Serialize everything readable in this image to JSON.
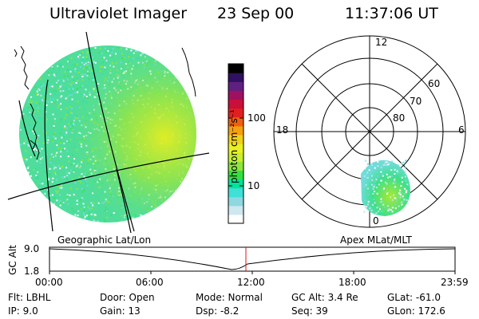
{
  "header": {
    "instrument": "Ultraviolet Imager",
    "date": "23 Sep 00",
    "time": "11:37:06 UT"
  },
  "colorbar": {
    "unit_label": "photon cm⁻²s⁻¹",
    "ticks": [
      "100",
      "10"
    ],
    "scale": "log",
    "colors": [
      "#ffffff",
      "#cfe7ee",
      "#8ed8e0",
      "#3ee0d8",
      "#00e39a",
      "#33e040",
      "#8ee63a",
      "#c8ee2e",
      "#e8f020",
      "#f0d018",
      "#f4a010",
      "#ee6010",
      "#e02020",
      "#c8103a",
      "#a01060",
      "#602080",
      "#301060",
      "#000000"
    ]
  },
  "left_panel": {
    "label": "Geographic Lat/Lon"
  },
  "polar_plot": {
    "label": "Apex MLat/MLT",
    "mlt_labels": {
      "top": "12",
      "left": "18",
      "right": "6",
      "bottom": "0"
    },
    "lat_labels": [
      "60",
      "70",
      "80"
    ]
  },
  "altitude_plot": {
    "ylabel": "GC Alt",
    "yticks": [
      "9.0",
      "1.8"
    ],
    "xticks": [
      "00:00",
      "06:00",
      "12:00",
      "18:00",
      "23:59"
    ]
  },
  "status": {
    "flt": "Flt: LBHL",
    "ip": "IP:  9.0",
    "door": "Door: Open",
    "gain": "Gain: 13",
    "mode": "Mode: Normal",
    "dsp": "Dsp:    -8.2",
    "gcalt": "GC Alt: 3.4 Re",
    "seq": "Seq: 39",
    "glat": "GLat: -61.0",
    "glon": "GLon: 172.6"
  }
}
